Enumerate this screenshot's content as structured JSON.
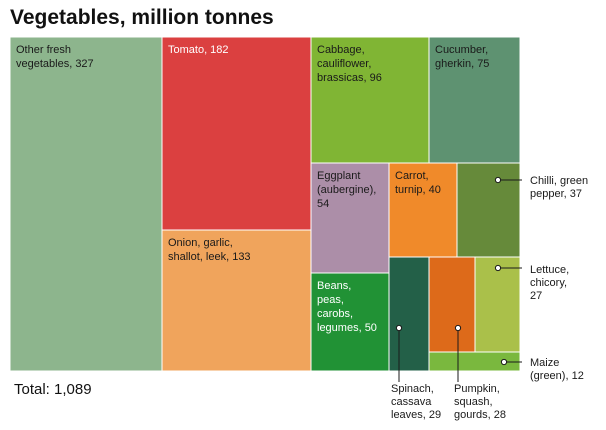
{
  "chart_data": {
    "type": "treemap",
    "title": "Vegetables, million tonnes",
    "total_label": "Total: 1,089",
    "items": [
      {
        "label": "Other fresh vegetables, 327",
        "value": 327,
        "color": "#8db58d"
      },
      {
        "label": "Tomato, 182",
        "value": 182,
        "color": "#db4040"
      },
      {
        "label": "Onion, garlic, shallot, leek, 133",
        "value": 133,
        "color": "#f0a45c"
      },
      {
        "label": "Cabbage, cauliflower, brassicas, 96",
        "value": 96,
        "color": "#80b534"
      },
      {
        "label": "Cucumber, gherkin, 75",
        "value": 75,
        "color": "#5e9271"
      },
      {
        "label": "Eggplant (aubergine), 54",
        "value": 54,
        "color": "#ac8ea8"
      },
      {
        "label": "Beans, peas, carobs, legumes, 50",
        "value": 50,
        "color": "#219235"
      },
      {
        "label": "Carrot, turnip, 40",
        "value": 40,
        "color": "#f08a2a"
      },
      {
        "label": "Chilli, green pepper, 37",
        "value": 37,
        "color": "#668a3a"
      },
      {
        "label": "Spinach, cassava leaves, 29",
        "value": 29,
        "color": "#236048"
      },
      {
        "label": "Pumpkin, squash, gourds, 28",
        "value": 28,
        "color": "#dd6a1a"
      },
      {
        "label": "Lettuce, chicory, 27",
        "value": 27,
        "color": "#aac04a"
      },
      {
        "label": "Maize (green), 12",
        "value": 12,
        "color": "#7ab83e"
      }
    ]
  }
}
